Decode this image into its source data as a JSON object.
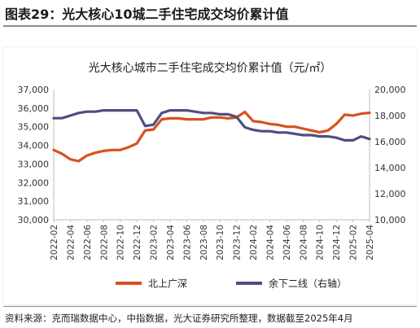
{
  "figure_title": "图表29：光大核心10城二手住宅成交均价累计值",
  "source_note": "资料来源：克而瑞数据中心，中指数据，光大证券研究所整理，数据截至2025年4月",
  "chart_data": {
    "type": "line",
    "title": "光大核心城市二手住宅成交均价累计值（元/㎡）",
    "x": [
      "2022-02",
      "2022-03",
      "2022-04",
      "2022-05",
      "2022-06",
      "2022-07",
      "2022-08",
      "2022-09",
      "2022-10",
      "2022-11",
      "2022-12",
      "2023-01",
      "2023-02",
      "2023-03",
      "2023-04",
      "2023-05",
      "2023-06",
      "2023-07",
      "2023-08",
      "2023-09",
      "2023-10",
      "2023-11",
      "2023-12",
      "2024-01",
      "2024-02",
      "2024-03",
      "2024-04",
      "2024-05",
      "2024-06",
      "2024-07",
      "2024-08",
      "2024-09",
      "2024-10",
      "2024-11",
      "2024-12",
      "2025-01",
      "2025-02",
      "2025-03",
      "2025-04"
    ],
    "x_tick_labels": [
      "2022-02",
      "2022-04",
      "2022-06",
      "2022-08",
      "2022-10",
      "2022-12",
      "2023-02",
      "2023-04",
      "2023-06",
      "2023-08",
      "2023-10",
      "2023-12",
      "2024-02",
      "2024-04",
      "2024-06",
      "2024-08",
      "2024-10",
      "2024-12",
      "2025-02",
      "2025-04"
    ],
    "y_left": {
      "min": 30000,
      "max": 37000,
      "ticks": [
        "30,000",
        "31,000",
        "32,000",
        "33,000",
        "34,000",
        "35,000",
        "36,000",
        "37,000"
      ]
    },
    "y_right": {
      "min": 10000,
      "max": 20000,
      "ticks": [
        "10,000",
        "12,000",
        "14,000",
        "16,000",
        "18,000",
        "20,000"
      ]
    },
    "series": [
      {
        "name": "北上广深",
        "axis": "left",
        "color": "#d9501e",
        "values": [
          33750,
          33550,
          33250,
          33150,
          33450,
          33600,
          33700,
          33750,
          33750,
          33900,
          34100,
          34800,
          34850,
          35400,
          35450,
          35450,
          35400,
          35400,
          35400,
          35500,
          35500,
          35450,
          35500,
          35800,
          35300,
          35250,
          35150,
          35100,
          35000,
          35000,
          34900,
          34800,
          34700,
          34800,
          35150,
          35650,
          35600,
          35700,
          35750
        ]
      },
      {
        "name": "余下二线（右轴）",
        "axis": "right",
        "color": "#4e4e82",
        "values": [
          17800,
          17800,
          18000,
          18200,
          18300,
          18300,
          18400,
          18400,
          18400,
          18400,
          18400,
          17200,
          17300,
          18200,
          18400,
          18400,
          18400,
          18300,
          18200,
          18200,
          18100,
          18100,
          17900,
          17100,
          16900,
          16800,
          16800,
          16700,
          16700,
          16600,
          16500,
          16500,
          16400,
          16400,
          16300,
          16100,
          16100,
          16400,
          16200
        ]
      }
    ],
    "legend_position": "bottom",
    "grid": false
  }
}
